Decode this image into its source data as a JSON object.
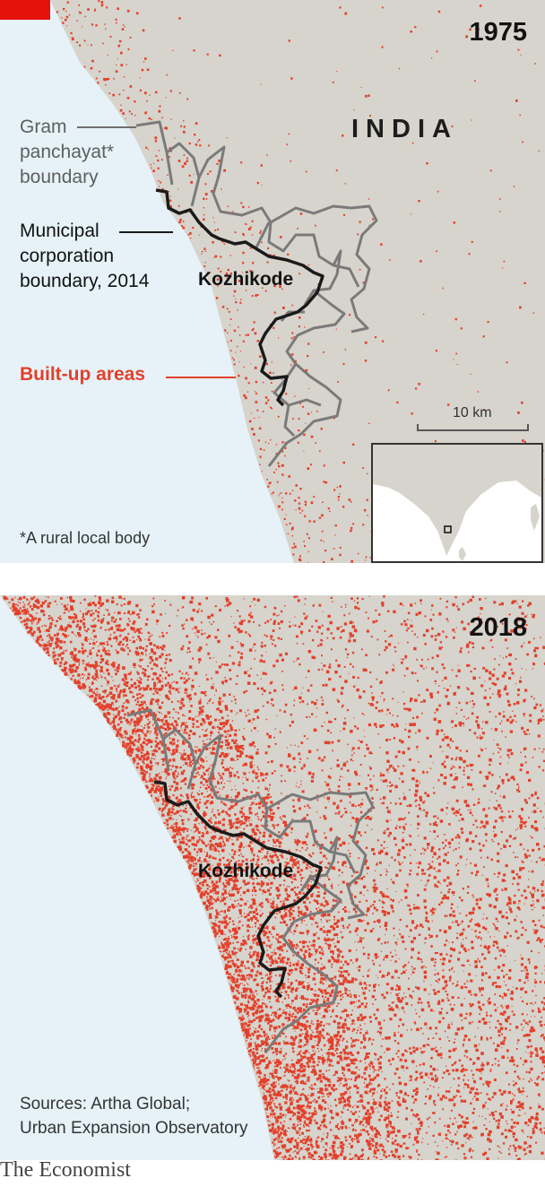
{
  "colors": {
    "sea": "#e6f2f8",
    "land": "#d6d4cc",
    "built_up": "#e3402b",
    "panchayat_boundary": "#7a7a7a",
    "municipal_boundary": "#1a1a1a",
    "accent": "#e3120b"
  },
  "panels": [
    {
      "year": "1975",
      "built_up_density": "sparse"
    },
    {
      "year": "2018",
      "built_up_density": "dense"
    }
  ],
  "country_label": "INDIA",
  "city_label": "Kozhikode",
  "legend": {
    "gram_panchayat": [
      "Gram",
      "panchayat*",
      "boundary"
    ],
    "municipal": [
      "Municipal",
      "corporation",
      "boundary, 2014"
    ],
    "built_up": "Built-up areas"
  },
  "scale": "10 km",
  "footnote": "*A rural local body",
  "sources": [
    "Sources: Artha Global;",
    "Urban Expansion Observatory"
  ],
  "logo": "The Economist"
}
